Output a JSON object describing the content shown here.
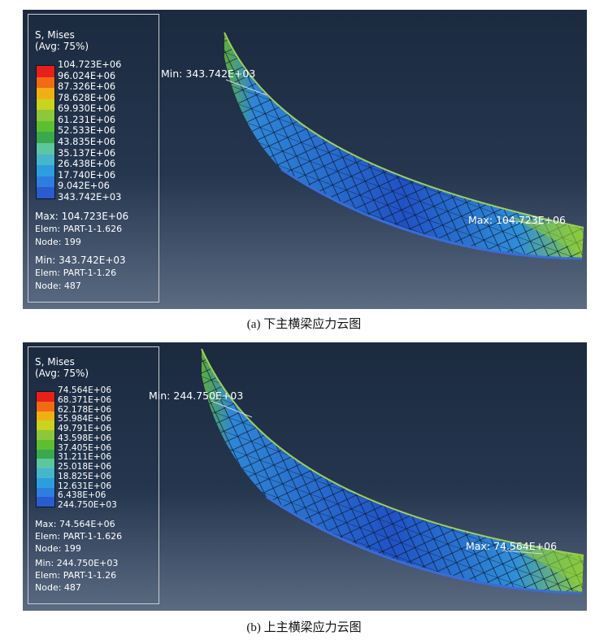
{
  "panels": [
    {
      "legend": {
        "title_line1": "S, Mises",
        "title_line2": "(Avg: 75%)",
        "values": [
          "104.723E+06",
          "96.024E+06",
          "87.326E+06",
          "78.628E+06",
          "69.930E+06",
          "61.231E+06",
          "52.533E+06",
          "43.835E+06",
          "35.137E+06",
          "26.438E+06",
          "17.740E+06",
          "9.042E+06",
          "343.742E+03"
        ],
        "max_label": "Max: 104.723E+06",
        "max_elem": "Elem: PART-1-1.626",
        "max_node": "Node: 199",
        "min_label": "Min: 343.742E+03",
        "min_elem": "Elem: PART-1-1.26",
        "min_node": "Node: 487"
      },
      "min_annotation": "Min: 343.742E+03",
      "max_annotation": "Max: 104.723E+06",
      "caption": "(a) 下主横梁应力云图"
    },
    {
      "legend": {
        "title_line1": "S, Mises",
        "title_line2": "(Avg: 75%)",
        "values": [
          "74.564E+06",
          "68.371E+06",
          "62.178E+06",
          "55.984E+06",
          "49.791E+06",
          "43.598E+06",
          "37.405E+06",
          "31.211E+06",
          "25.018E+06",
          "18.825E+06",
          "12.631E+06",
          "6.438E+06",
          "244.750E+03"
        ],
        "max_label": "Max: 74.564E+06",
        "max_elem": "Elem: PART-1-1.626",
        "max_node": "Node: 199",
        "min_label": "Min: 244.750E+03",
        "min_elem": "Elem: PART-1-1.26",
        "min_node": "Node: 487"
      },
      "min_annotation": "Min: 244.750E+03",
      "max_annotation": "Max: 74.564E+06",
      "caption": "(b) 上主横梁应力云图"
    }
  ],
  "colors": {
    "contour_bands": [
      "#e8201a",
      "#f26a14",
      "#f0b014",
      "#c8d41e",
      "#8cc83a",
      "#5ebe32",
      "#3aa84c",
      "#5cc6a0",
      "#46b6cc",
      "#2c9ee0",
      "#2f7de0",
      "#2a5cd0"
    ],
    "beam_base": "#1f4fbf",
    "beam_mid": "#2d8fd8",
    "beam_hot": "#7cc43c"
  }
}
